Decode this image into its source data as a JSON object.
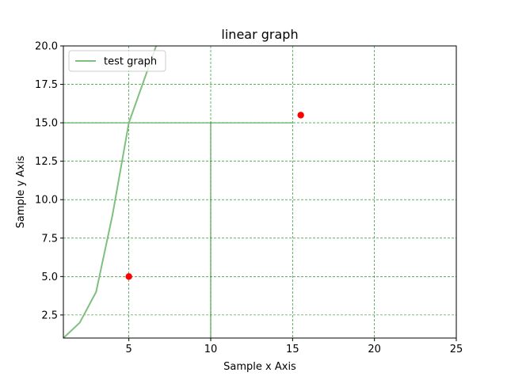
{
  "chart_data": {
    "type": "line",
    "title": "linear graph",
    "xlabel": "Sample x Axis",
    "ylabel": "Sample y Axis",
    "xlim": [
      1,
      25
    ],
    "ylim": [
      1,
      20
    ],
    "xticks": [
      5,
      10,
      15,
      20,
      25
    ],
    "yticks": [
      2.5,
      5.0,
      7.5,
      10.0,
      12.5,
      15.0,
      17.5,
      20.0
    ],
    "xtick_labels": [
      "5",
      "10",
      "15",
      "20",
      "25"
    ],
    "ytick_labels": [
      "2.5",
      "5.0",
      "7.5",
      "10.0",
      "12.5",
      "15.0",
      "17.5",
      "20.0"
    ],
    "grid": true,
    "grid_color": "#008000",
    "legend_position": "upper-left",
    "series": [
      {
        "name": "test graph",
        "kind": "line",
        "color": "#7fbf7f",
        "x": [
          1,
          2,
          3,
          4,
          5,
          6,
          7
        ],
        "y": [
          1,
          2,
          4,
          9,
          15,
          18,
          21
        ]
      },
      {
        "kind": "scatter",
        "color": "#ff0000",
        "x": [
          5,
          15.5
        ],
        "y": [
          5,
          15.5
        ]
      }
    ],
    "reference_lines": [
      {
        "x": [
          1,
          15
        ],
        "y": [
          15,
          15
        ],
        "color": "#008000"
      },
      {
        "x": [
          10,
          10
        ],
        "y": [
          1,
          15
        ],
        "color": "#008000"
      }
    ]
  }
}
